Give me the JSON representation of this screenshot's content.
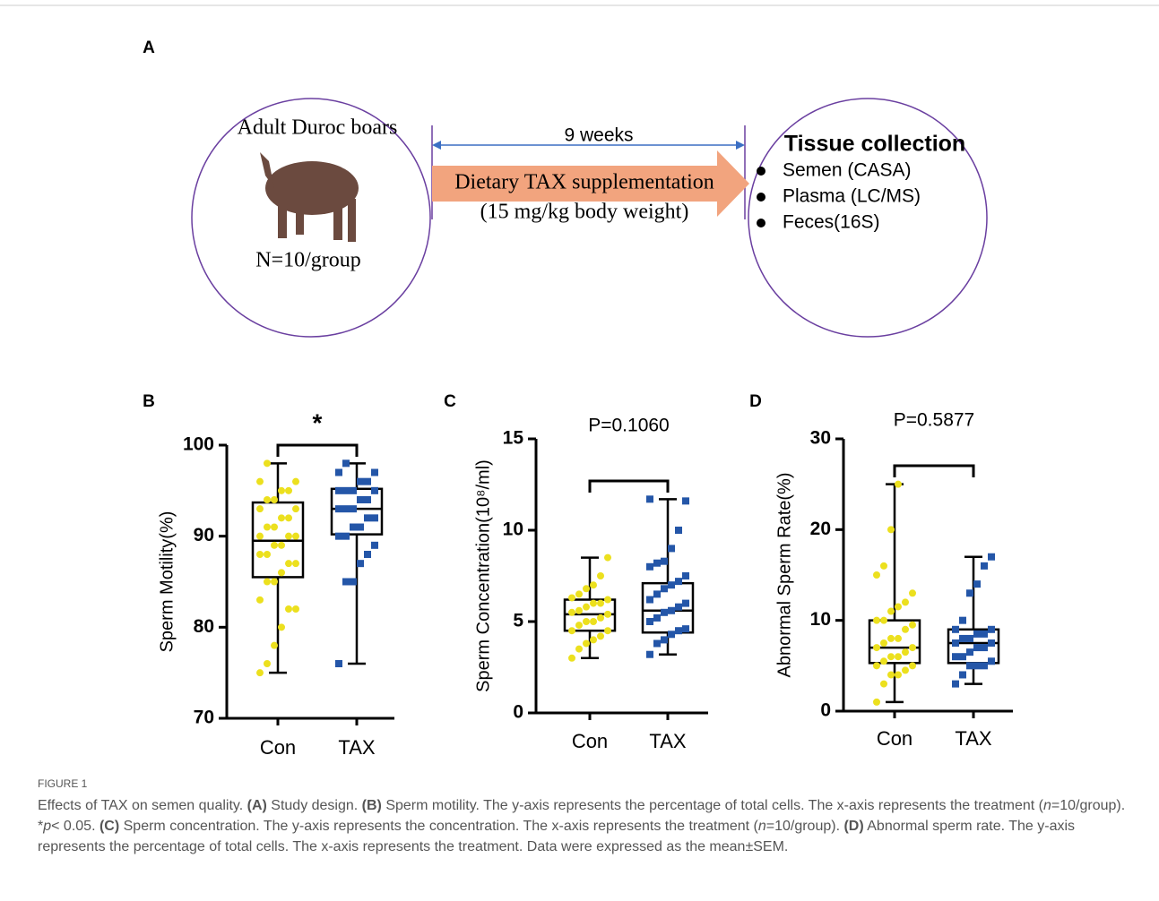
{
  "diagram": {
    "panel": "A",
    "subjects": "Adult Duroc boars",
    "n": "N=10/group",
    "duration": "9 weeks",
    "treatment": "Dietary TAX supplementation",
    "dose": "(15 mg/kg body weight)",
    "collection_title": "Tissue collection",
    "collection_items": [
      "Semen (CASA)",
      "Plasma (LC/MS)",
      "Feces(16S)"
    ]
  },
  "chart_data": [
    {
      "type": "box",
      "panel": "B",
      "annotation": "*",
      "y_label": "Sperm Motility(%)",
      "categories": [
        "Con",
        "TAX"
      ],
      "colors": [
        "#ece01e",
        "#2456a8"
      ],
      "markers": [
        "circle",
        "square"
      ],
      "ylim": [
        70,
        100
      ],
      "yticks": [
        70,
        80,
        90,
        100
      ],
      "boxes": [
        {
          "min": 75,
          "q1": 85.5,
          "median": 89.5,
          "q3": 93.7,
          "max": 98,
          "points": [
            75,
            76,
            78,
            80,
            82,
            82,
            83,
            85,
            85,
            86,
            87,
            87,
            88,
            88,
            89,
            89,
            90,
            90,
            90,
            91,
            91,
            92,
            92,
            93,
            93,
            94,
            94,
            95,
            95,
            96,
            96,
            98
          ]
        },
        {
          "min": 76,
          "q1": 90.2,
          "median": 93,
          "q3": 95.2,
          "max": 98,
          "points": [
            76,
            85,
            85,
            87,
            88,
            89,
            90,
            90,
            91,
            91,
            92,
            92,
            93,
            93,
            93,
            94,
            94,
            95,
            95,
            95,
            95,
            96,
            96,
            97,
            97,
            98
          ]
        }
      ]
    },
    {
      "type": "box",
      "panel": "C",
      "annotation": "P=0.1060",
      "y_label": "Sperm Concentration(10⁸/ml)",
      "categories": [
        "Con",
        "TAX"
      ],
      "colors": [
        "#ece01e",
        "#2456a8"
      ],
      "markers": [
        "circle",
        "square"
      ],
      "ylim": [
        0,
        15
      ],
      "yticks": [
        0,
        5,
        10,
        15
      ],
      "boxes": [
        {
          "min": 3,
          "q1": 4.5,
          "median": 5.4,
          "q3": 6.2,
          "max": 8.5,
          "points": [
            3,
            3.5,
            3.8,
            4,
            4.2,
            4.5,
            4.5,
            4.8,
            5,
            5,
            5.2,
            5.4,
            5.5,
            5.6,
            5.8,
            6,
            6,
            6.2,
            6.3,
            6.5,
            6.8,
            7,
            7.5,
            8.5
          ]
        },
        {
          "min": 3.2,
          "q1": 4.4,
          "median": 5.6,
          "q3": 7.1,
          "max": 11.7,
          "points": [
            3.2,
            3.8,
            4,
            4.3,
            4.5,
            4.6,
            5,
            5.2,
            5.5,
            5.6,
            5.8,
            6,
            6.2,
            6.5,
            6.8,
            7,
            7.2,
            7.5,
            8,
            8.2,
            8.3,
            9,
            10,
            11.6,
            11.7
          ]
        }
      ]
    },
    {
      "type": "box",
      "panel": "D",
      "annotation": "P=0.5877",
      "y_label": "Abnormal Sperm Rate(%)",
      "categories": [
        "Con",
        "TAX"
      ],
      "colors": [
        "#ece01e",
        "#2456a8"
      ],
      "markers": [
        "circle",
        "square"
      ],
      "ylim": [
        0,
        30
      ],
      "yticks": [
        0,
        10,
        20,
        30
      ],
      "boxes": [
        {
          "min": 1,
          "q1": 5.3,
          "median": 7,
          "q3": 10,
          "max": 25,
          "points": [
            1,
            3,
            4,
            4,
            4.5,
            5,
            5,
            5.5,
            6,
            6,
            6.5,
            7,
            7,
            7.5,
            8,
            8,
            9,
            9.5,
            10,
            10,
            11,
            11.5,
            12,
            13,
            15,
            16,
            20,
            25
          ]
        },
        {
          "min": 3,
          "q1": 5.3,
          "median": 7.5,
          "q3": 9,
          "max": 17,
          "points": [
            3,
            4,
            5,
            5,
            5,
            5.5,
            6,
            6,
            6.5,
            7,
            7,
            7.5,
            7.5,
            8,
            8,
            8.5,
            8.5,
            9,
            9,
            10,
            13,
            14,
            16,
            17
          ]
        }
      ]
    }
  ],
  "caption": {
    "label": "FIGURE 1",
    "parts": [
      {
        "text": "Effects of TAX on semen quality. "
      },
      {
        "text": "(A)",
        "style": "b"
      },
      {
        "text": " Study design. "
      },
      {
        "text": "(B)",
        "style": "b"
      },
      {
        "text": " Sperm motility. The y-axis represents the percentage of total cells. The x-axis represents the treatment ("
      },
      {
        "text": "n",
        "style": "i"
      },
      {
        "text": "=10/group). *"
      },
      {
        "text": "p",
        "style": "i"
      },
      {
        "text": "< 0.05. "
      },
      {
        "text": "(C)",
        "style": "b"
      },
      {
        "text": " Sperm concentration. The y-axis represents the concentration. The x-axis represents the treatment ("
      },
      {
        "text": "n",
        "style": "i"
      },
      {
        "text": "=10/group). "
      },
      {
        "text": "(D)",
        "style": "b"
      },
      {
        "text": " Abnormal sperm rate. The y-axis represents the percentage of total cells. The x-axis represents the treatment. Data were expressed as the mean±SEM."
      }
    ]
  }
}
